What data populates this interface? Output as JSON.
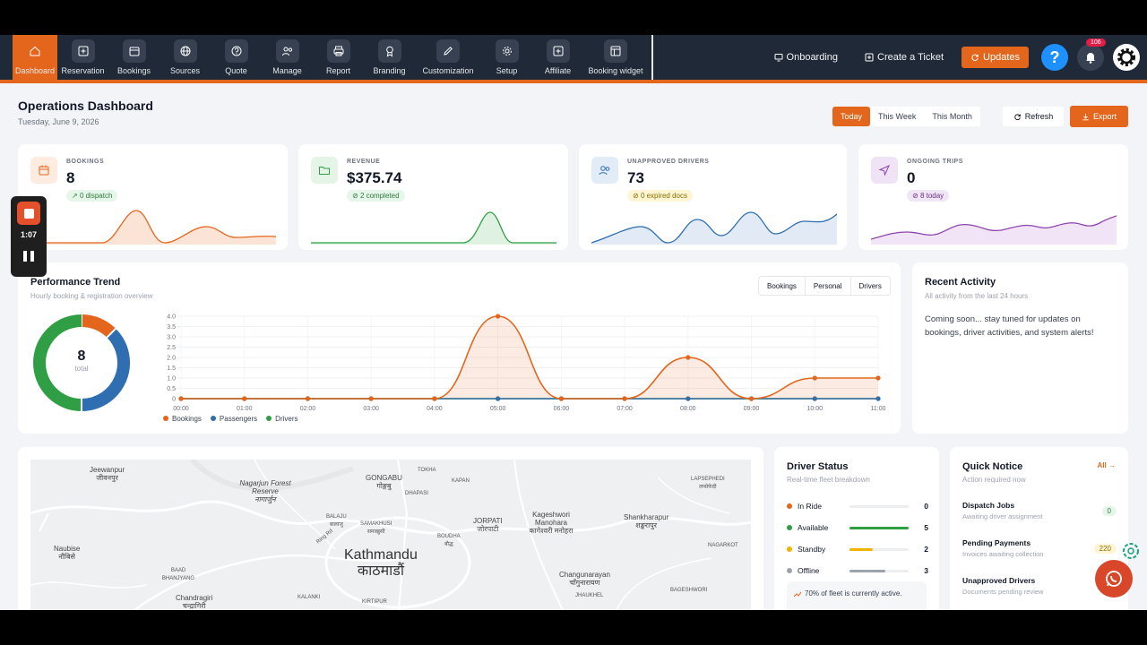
{
  "nav": {
    "items": [
      {
        "label": "Dashboard",
        "icon": "home-icon"
      },
      {
        "label": "Reservation",
        "icon": "plus-square-icon"
      },
      {
        "label": "Bookings",
        "icon": "calendar-icon"
      },
      {
        "label": "Sources",
        "icon": "globe-icon"
      },
      {
        "label": "Quote",
        "icon": "question-circle-icon"
      },
      {
        "label": "Manage",
        "icon": "users-icon"
      },
      {
        "label": "Report",
        "icon": "printer-icon"
      },
      {
        "label": "Branding",
        "icon": "badge-icon"
      },
      {
        "label": "Customization",
        "icon": "edit-icon"
      },
      {
        "label": "Setup",
        "icon": "gear-icon"
      },
      {
        "label": "Affiliate",
        "icon": "plus-square-icon"
      },
      {
        "label": "Booking widget",
        "icon": "layout-icon"
      }
    ],
    "onboarding": "Onboarding",
    "create_ticket": "Create a Ticket",
    "updates": "Updates",
    "help": "?",
    "notification_count": "106"
  },
  "header": {
    "title": "Operations Dashboard",
    "date": "Tuesday, June 9, 2026",
    "ranges": [
      "Today",
      "This Week",
      "This Month"
    ],
    "refresh": "Refresh",
    "export": "Export"
  },
  "stats": [
    {
      "label": "BOOKINGS",
      "value": "8",
      "pill": "0 dispatch",
      "color": "#e4661c"
    },
    {
      "label": "REVENUE",
      "value": "$375.74",
      "pill": "2 completed",
      "color": "#2f9e44"
    },
    {
      "label": "UNAPPROVED DRIVERS",
      "value": "73",
      "pill": "0 expired docs",
      "color": "#2f6eb0"
    },
    {
      "label": "ONGOING TRIPS",
      "value": "0",
      "pill": "8 today",
      "color": "#8e44ad"
    }
  ],
  "performance": {
    "title": "Performance Trend",
    "subtitle": "Hourly booking & registration overview",
    "tabs": [
      "Bookings",
      "Personal",
      "Drivers"
    ],
    "donut_total": "8",
    "donut_caption": "total"
  },
  "chart_data": {
    "type": "line",
    "x": [
      "00:00",
      "01:00",
      "02:00",
      "03:00",
      "04:00",
      "05:00",
      "06:00",
      "07:00",
      "08:00",
      "09:00",
      "10:00",
      "11:00"
    ],
    "y_ticks": [
      "0",
      "0.5",
      "1.0",
      "1.5",
      "2.0",
      "2.5",
      "3.0",
      "3.5",
      "4.0"
    ],
    "ylim": [
      0,
      4
    ],
    "series": [
      {
        "name": "Bookings",
        "color": "#e4661c",
        "values": [
          0,
          0,
          0,
          0,
          0,
          4,
          0,
          0,
          2,
          0,
          1,
          1
        ]
      },
      {
        "name": "Passengers",
        "color": "#2f6eb0",
        "values": [
          0,
          0,
          0,
          0,
          0,
          0,
          0,
          0,
          0,
          0,
          0,
          0
        ]
      },
      {
        "name": "Drivers",
        "color": "#2f9e44",
        "values": [
          0,
          0,
          0,
          0,
          0,
          0,
          0,
          0,
          0,
          0,
          0,
          0
        ]
      }
    ],
    "donut": [
      {
        "name": "Bookings",
        "value": 1,
        "color": "#e4661c"
      },
      {
        "name": "Passengers",
        "value": 3,
        "color": "#2f6eb0"
      },
      {
        "name": "Drivers",
        "value": 4,
        "color": "#2f9e44"
      }
    ]
  },
  "recent": {
    "title": "Recent Activity",
    "subtitle": "All activity from the last 24 hours",
    "body": "Coming soon... stay tuned for updates on bookings, driver activities, and system alerts!"
  },
  "map": {
    "labels": [
      {
        "t": "Jeewanpur",
        "n": "जीवनपुर"
      },
      {
        "t": "Nagarjun Forest Reserve",
        "n": "नागार्जुन"
      },
      {
        "t": "GONGABU",
        "n": "गोङ्गबु"
      },
      {
        "t": "TOKHA",
        "n": ""
      },
      {
        "t": "DHAPASI",
        "n": ""
      },
      {
        "t": "KAPAN",
        "n": ""
      },
      {
        "t": "LAPSEPHEDI",
        "n": "लप्सेफेदी"
      },
      {
        "t": "BALAJU",
        "n": "बालाजु"
      },
      {
        "t": "SAMAKHUSI",
        "n": "समाखुसी"
      },
      {
        "t": "JORPATI",
        "n": "जोरपाटी"
      },
      {
        "t": "Kageshwori Manohara",
        "n": "कागेश्वरी मनोहरा"
      },
      {
        "t": "Shankharapur",
        "n": "शङ्खरापुर"
      },
      {
        "t": "Naubise",
        "n": "नौबिसे"
      },
      {
        "t": "Kathmandu",
        "n": "काठमाडौं"
      },
      {
        "t": "BOUDHA",
        "n": "बौद्ध"
      },
      {
        "t": "NAGARKOT",
        "n": ""
      },
      {
        "t": "BAAD BHANJYANG",
        "n": ""
      },
      {
        "t": "Changunarayan",
        "n": "चाँगुनारायण"
      },
      {
        "t": "Chandragiri",
        "n": "चन्द्रागिरी"
      },
      {
        "t": "KIRTIPUR",
        "n": ""
      },
      {
        "t": "JHAUKHEL",
        "n": ""
      },
      {
        "t": "KALANKI",
        "n": ""
      },
      {
        "t": "BAGESHWORI",
        "n": ""
      },
      {
        "t": "Ring Rd",
        "n": ""
      }
    ]
  },
  "driver_status": {
    "title": "Driver Status",
    "subtitle": "Real-time fleet breakdown",
    "rows": [
      {
        "name": "In Ride",
        "count": "0",
        "fraction": 0,
        "color": "#e4661c"
      },
      {
        "name": "Available",
        "count": "5",
        "fraction": 1.0,
        "color": "#2f9e44"
      },
      {
        "name": "Standby",
        "count": "2",
        "fraction": 0.4,
        "color": "#f0b400"
      },
      {
        "name": "Offline",
        "count": "3",
        "fraction": 0.6,
        "color": "#9ca3af"
      }
    ],
    "note": "70% of fleet is currently active."
  },
  "quick_notice": {
    "title": "Quick Notice",
    "subtitle": "Action required now",
    "all_link": "All →",
    "items": [
      {
        "title": "Dispatch Jobs",
        "sub": "Awaiting driver assignment",
        "badge": "0"
      },
      {
        "title": "Pending Payments",
        "sub": "Invoices awaiting collection",
        "badge": "220"
      },
      {
        "title": "Unapproved Drivers",
        "sub": "Documents pending review",
        "badge": ""
      }
    ]
  },
  "recorder": {
    "time": "1:07"
  }
}
